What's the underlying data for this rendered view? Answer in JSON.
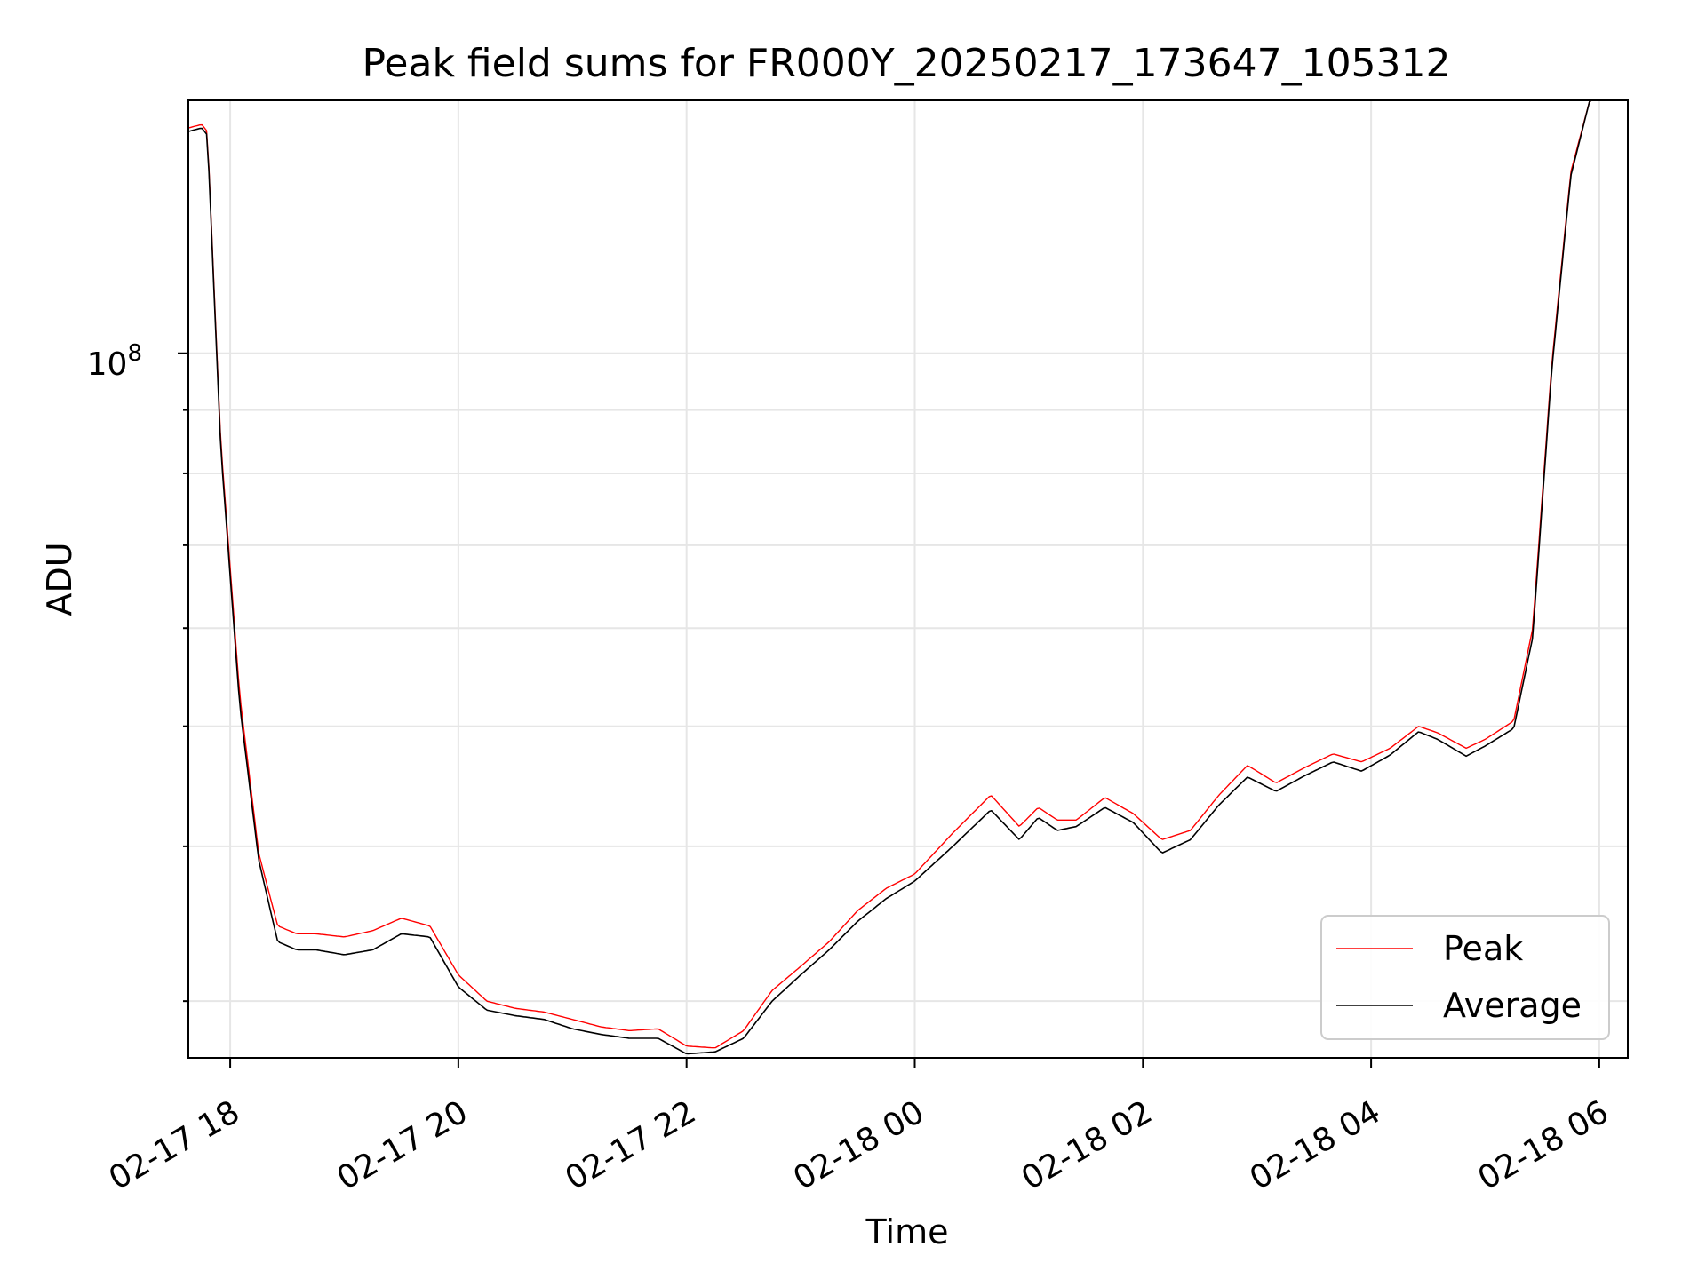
{
  "chart_data": {
    "type": "line",
    "title": "Peak field sums for FR000Y_20250217_173647_105312",
    "xlabel": "Time",
    "ylabel": "ADU",
    "y_scale": "log",
    "ylim": [
      27000000,
      160000000
    ],
    "xlim": [
      "02-17 17:38",
      "02-18 06:15"
    ],
    "x_ticks": [
      "02-17 18",
      "02-17 20",
      "02-17 22",
      "02-18 00",
      "02-18 02",
      "02-18 04",
      "02-18 06"
    ],
    "y_major_tick_label_base": "10",
    "y_major_tick_label_exp": "8",
    "grid": true,
    "legend_position": "bottom-right",
    "colors": {
      "peak": "#ff0000",
      "average": "#000000",
      "grid": "#e6e6e6"
    },
    "series": [
      {
        "name": "Peak",
        "x": [
          "02-17 17:38",
          "02-17 17:45",
          "02-17 17:48",
          "02-17 17:55",
          "02-17 18:05",
          "02-17 18:15",
          "02-17 18:25",
          "02-17 18:35",
          "02-17 18:45",
          "02-17 19:00",
          "02-17 19:15",
          "02-17 19:30",
          "02-17 19:45",
          "02-17 20:00",
          "02-17 20:15",
          "02-17 20:30",
          "02-17 20:45",
          "02-17 21:00",
          "02-17 21:15",
          "02-17 21:30",
          "02-17 21:45",
          "02-17 22:00",
          "02-17 22:15",
          "02-17 22:30",
          "02-17 22:45",
          "02-17 23:00",
          "02-17 23:15",
          "02-17 23:30",
          "02-17 23:45",
          "02-18 00:00",
          "02-18 00:20",
          "02-18 00:40",
          "02-18 00:55",
          "02-18 01:05",
          "02-18 01:15",
          "02-18 01:25",
          "02-18 01:40",
          "02-18 01:55",
          "02-18 02:10",
          "02-18 02:25",
          "02-18 02:40",
          "02-18 02:55",
          "02-18 03:10",
          "02-18 03:25",
          "02-18 03:40",
          "02-18 03:55",
          "02-18 04:10",
          "02-18 04:25",
          "02-18 04:35",
          "02-18 04:50",
          "02-18 05:00",
          "02-18 05:15",
          "02-18 05:25",
          "02-18 05:35",
          "02-18 05:45",
          "02-18 05:55",
          "02-18 06:00"
        ],
        "y": [
          152000000,
          153000000,
          151000000,
          85000000,
          53000000,
          39500000,
          34500000,
          34000000,
          34000000,
          33800000,
          34200000,
          35000000,
          34500000,
          31500000,
          30000000,
          29600000,
          29400000,
          29000000,
          28600000,
          28400000,
          28500000,
          27600000,
          27500000,
          28400000,
          30600000,
          32000000,
          33500000,
          35500000,
          37000000,
          38000000,
          41000000,
          44000000,
          41500000,
          43000000,
          42000000,
          42000000,
          43800000,
          42500000,
          40500000,
          41200000,
          44000000,
          46500000,
          45000000,
          46300000,
          47500000,
          46800000,
          48000000,
          50000000,
          49400000,
          48000000,
          48800000,
          50500000,
          60000000,
          98000000,
          140000000,
          160000000,
          160000000
        ]
      },
      {
        "name": "Average",
        "x": [
          "02-17 17:38",
          "02-17 17:45",
          "02-17 17:48",
          "02-17 17:55",
          "02-17 18:05",
          "02-17 18:15",
          "02-17 18:25",
          "02-17 18:35",
          "02-17 18:45",
          "02-17 19:00",
          "02-17 19:15",
          "02-17 19:30",
          "02-17 19:45",
          "02-17 20:00",
          "02-17 20:15",
          "02-17 20:30",
          "02-17 20:45",
          "02-17 21:00",
          "02-17 21:15",
          "02-17 21:30",
          "02-17 21:45",
          "02-17 22:00",
          "02-17 22:15",
          "02-17 22:30",
          "02-17 22:45",
          "02-17 23:00",
          "02-17 23:15",
          "02-17 23:30",
          "02-17 23:45",
          "02-18 00:00",
          "02-18 00:20",
          "02-18 00:40",
          "02-18 00:55",
          "02-18 01:05",
          "02-18 01:15",
          "02-18 01:25",
          "02-18 01:40",
          "02-18 01:55",
          "02-18 02:10",
          "02-18 02:25",
          "02-18 02:40",
          "02-18 02:55",
          "02-18 03:10",
          "02-18 03:25",
          "02-18 03:40",
          "02-18 03:55",
          "02-18 04:10",
          "02-18 04:25",
          "02-18 04:35",
          "02-18 04:50",
          "02-18 05:00",
          "02-18 05:15",
          "02-18 05:25",
          "02-18 05:35",
          "02-18 05:45",
          "02-18 05:55",
          "02-18 06:00"
        ],
        "y": [
          151000000,
          152000000,
          150000000,
          84000000,
          52000000,
          39000000,
          33500000,
          33000000,
          33000000,
          32700000,
          33000000,
          34000000,
          33800000,
          30800000,
          29500000,
          29200000,
          29000000,
          28500000,
          28200000,
          28000000,
          28000000,
          27200000,
          27300000,
          28000000,
          30000000,
          31500000,
          33000000,
          34800000,
          36300000,
          37500000,
          40000000,
          42800000,
          40500000,
          42200000,
          41200000,
          41500000,
          43000000,
          41800000,
          39500000,
          40500000,
          43200000,
          45500000,
          44300000,
          45600000,
          46800000,
          46000000,
          47400000,
          49500000,
          48800000,
          47300000,
          48200000,
          49800000,
          59000000,
          97000000,
          139000000,
          160000000,
          160000000
        ]
      }
    ]
  }
}
